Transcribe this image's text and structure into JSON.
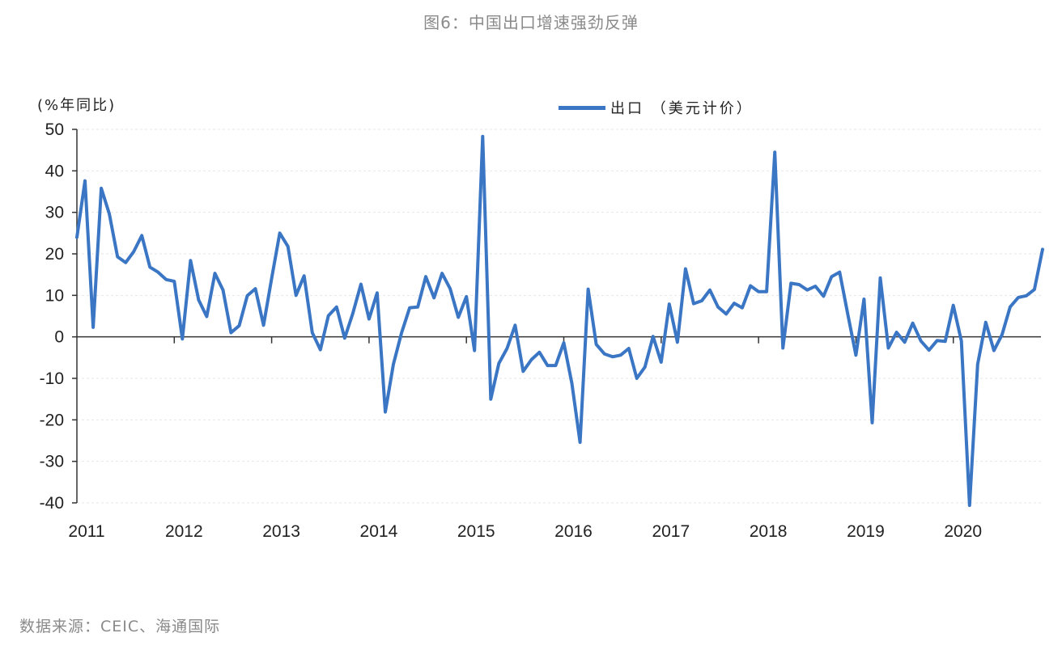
{
  "chart_data": {
    "type": "line",
    "title": "图6：中国出口增速强劲反弹",
    "ylabel": "(%年同比)",
    "xlabel": "",
    "ylim": [
      -40,
      50
    ],
    "yticks": [
      50,
      40,
      30,
      20,
      10,
      0,
      -10,
      -20,
      -30,
      -40
    ],
    "xticks": [
      "2011",
      "2012",
      "2013",
      "2014",
      "2015",
      "2016",
      "2017",
      "2018",
      "2019",
      "2020"
    ],
    "xrange": [
      2011.0,
      2020.9
    ],
    "grid": true,
    "legend_position": "top",
    "colors": {
      "series": "#3a76c4",
      "grid": "#e6e6e6",
      "axis": "#333333"
    },
    "series": [
      {
        "name": "出口 （美元计价）",
        "x": [
          2011.0,
          2011.083,
          2011.167,
          2011.25,
          2011.333,
          2011.417,
          2011.5,
          2011.583,
          2011.667,
          2011.75,
          2011.833,
          2011.917,
          2012.0,
          2012.083,
          2012.167,
          2012.25,
          2012.333,
          2012.417,
          2012.5,
          2012.583,
          2012.667,
          2012.75,
          2012.833,
          2012.917,
          2013.0,
          2013.083,
          2013.167,
          2013.25,
          2013.333,
          2013.417,
          2013.5,
          2013.583,
          2013.667,
          2013.75,
          2013.833,
          2013.917,
          2014.0,
          2014.083,
          2014.167,
          2014.25,
          2014.333,
          2014.417,
          2014.5,
          2014.583,
          2014.667,
          2014.75,
          2014.833,
          2014.917,
          2015.0,
          2015.083,
          2015.167,
          2015.25,
          2015.333,
          2015.417,
          2015.5,
          2015.583,
          2015.667,
          2015.75,
          2015.833,
          2015.917,
          2016.0,
          2016.083,
          2016.167,
          2016.25,
          2016.333,
          2016.417,
          2016.5,
          2016.583,
          2016.667,
          2016.75,
          2016.833,
          2016.917,
          2017.0,
          2017.083,
          2017.167,
          2017.25,
          2017.333,
          2017.417,
          2017.5,
          2017.583,
          2017.667,
          2017.75,
          2017.833,
          2017.917,
          2018.0,
          2018.083,
          2018.167,
          2018.25,
          2018.333,
          2018.417,
          2018.5,
          2018.583,
          2018.667,
          2018.75,
          2018.833,
          2018.917,
          2019.0,
          2019.083,
          2019.167,
          2019.25,
          2019.333,
          2019.417,
          2019.5,
          2019.583,
          2019.667,
          2019.75,
          2019.833,
          2019.917,
          2020.0,
          2020.083,
          2020.167,
          2020.25,
          2020.333,
          2020.417,
          2020.5,
          2020.583,
          2020.667,
          2020.75,
          2020.833,
          2020.917
        ],
        "values": [
          24.0,
          37.6,
          2.3,
          35.8,
          29.6,
          19.3,
          17.9,
          20.5,
          24.4,
          16.8,
          15.6,
          13.8,
          13.4,
          -0.5,
          18.4,
          8.9,
          4.9,
          15.3,
          11.3,
          1.0,
          2.7,
          9.9,
          11.6,
          2.8,
          14.1,
          25.0,
          21.8,
          10.0,
          14.7,
          1.0,
          -3.1,
          5.1,
          7.2,
          -0.3,
          5.6,
          12.7,
          4.3,
          10.6,
          -18.1,
          -6.6,
          0.9,
          7.0,
          7.2,
          14.5,
          9.4,
          15.3,
          11.6,
          4.7,
          9.7,
          -3.3,
          48.3,
          -15.0,
          -6.4,
          -2.8,
          2.8,
          -8.3,
          -5.5,
          -3.7,
          -6.9,
          -6.9,
          -1.4,
          -11.2,
          -25.4,
          11.5,
          -1.8,
          -4.1,
          -4.8,
          -4.4,
          -2.8,
          -10.0,
          -7.3,
          0.1,
          -6.1,
          7.9,
          -1.3,
          16.4,
          8.0,
          8.7,
          11.3,
          7.2,
          5.5,
          8.1,
          7.0,
          12.3,
          10.9,
          10.9,
          44.5,
          -2.7,
          12.9,
          12.6,
          11.3,
          12.2,
          9.8,
          14.5,
          15.6,
          5.4,
          -4.4,
          9.1,
          -20.7,
          14.2,
          -2.7,
          1.1,
          -1.3,
          3.3,
          -1.0,
          -3.2,
          -0.9,
          -1.1,
          7.6,
          -1.0,
          -40.6,
          -6.6,
          3.5,
          -3.3,
          0.5,
          7.2,
          9.5,
          9.9,
          11.4,
          21.1
        ]
      }
    ]
  },
  "source": "数据来源：CEIC、海通国际"
}
